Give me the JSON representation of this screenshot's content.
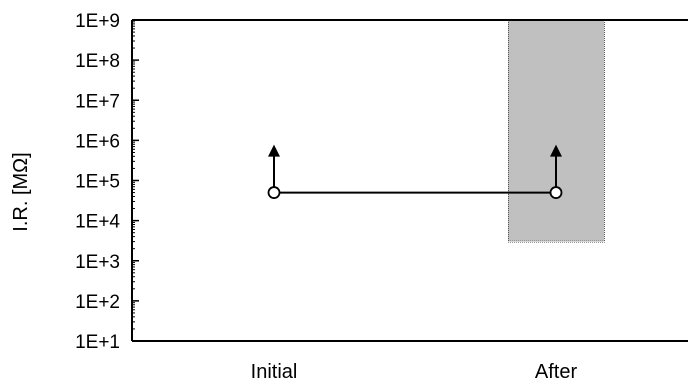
{
  "chart_data": {
    "type": "scatter",
    "title": "",
    "xlabel": "",
    "ylabel": "I.R. [MΩ]",
    "y_scale": "log",
    "ylim": [
      10,
      1000000000
    ],
    "yticks": [
      {
        "value": 10,
        "label": "1E+1"
      },
      {
        "value": 100,
        "label": "1E+2"
      },
      {
        "value": 1000,
        "label": "1E+3"
      },
      {
        "value": 10000,
        "label": "1E+4"
      },
      {
        "value": 100000,
        "label": "1E+5"
      },
      {
        "value": 1000000,
        "label": "1E+6"
      },
      {
        "value": 10000000,
        "label": "1E+7"
      },
      {
        "value": 100000000,
        "label": "1E+8"
      },
      {
        "value": 1000000000,
        "label": "1E+9"
      }
    ],
    "categories": [
      "Initial",
      "After"
    ],
    "series": [
      {
        "values": [
          50000,
          50000
        ],
        "marker": "open-circle",
        "connected": true,
        "upward_arrow": true
      }
    ],
    "ranges": [
      {
        "category": "After",
        "min": 3000,
        "max": 1000000000,
        "color": "#c0c0c0"
      }
    ],
    "grid": false,
    "colors": {
      "line": "#000000",
      "range_fill": "#c0c0c0",
      "range_border": "#808080"
    }
  }
}
